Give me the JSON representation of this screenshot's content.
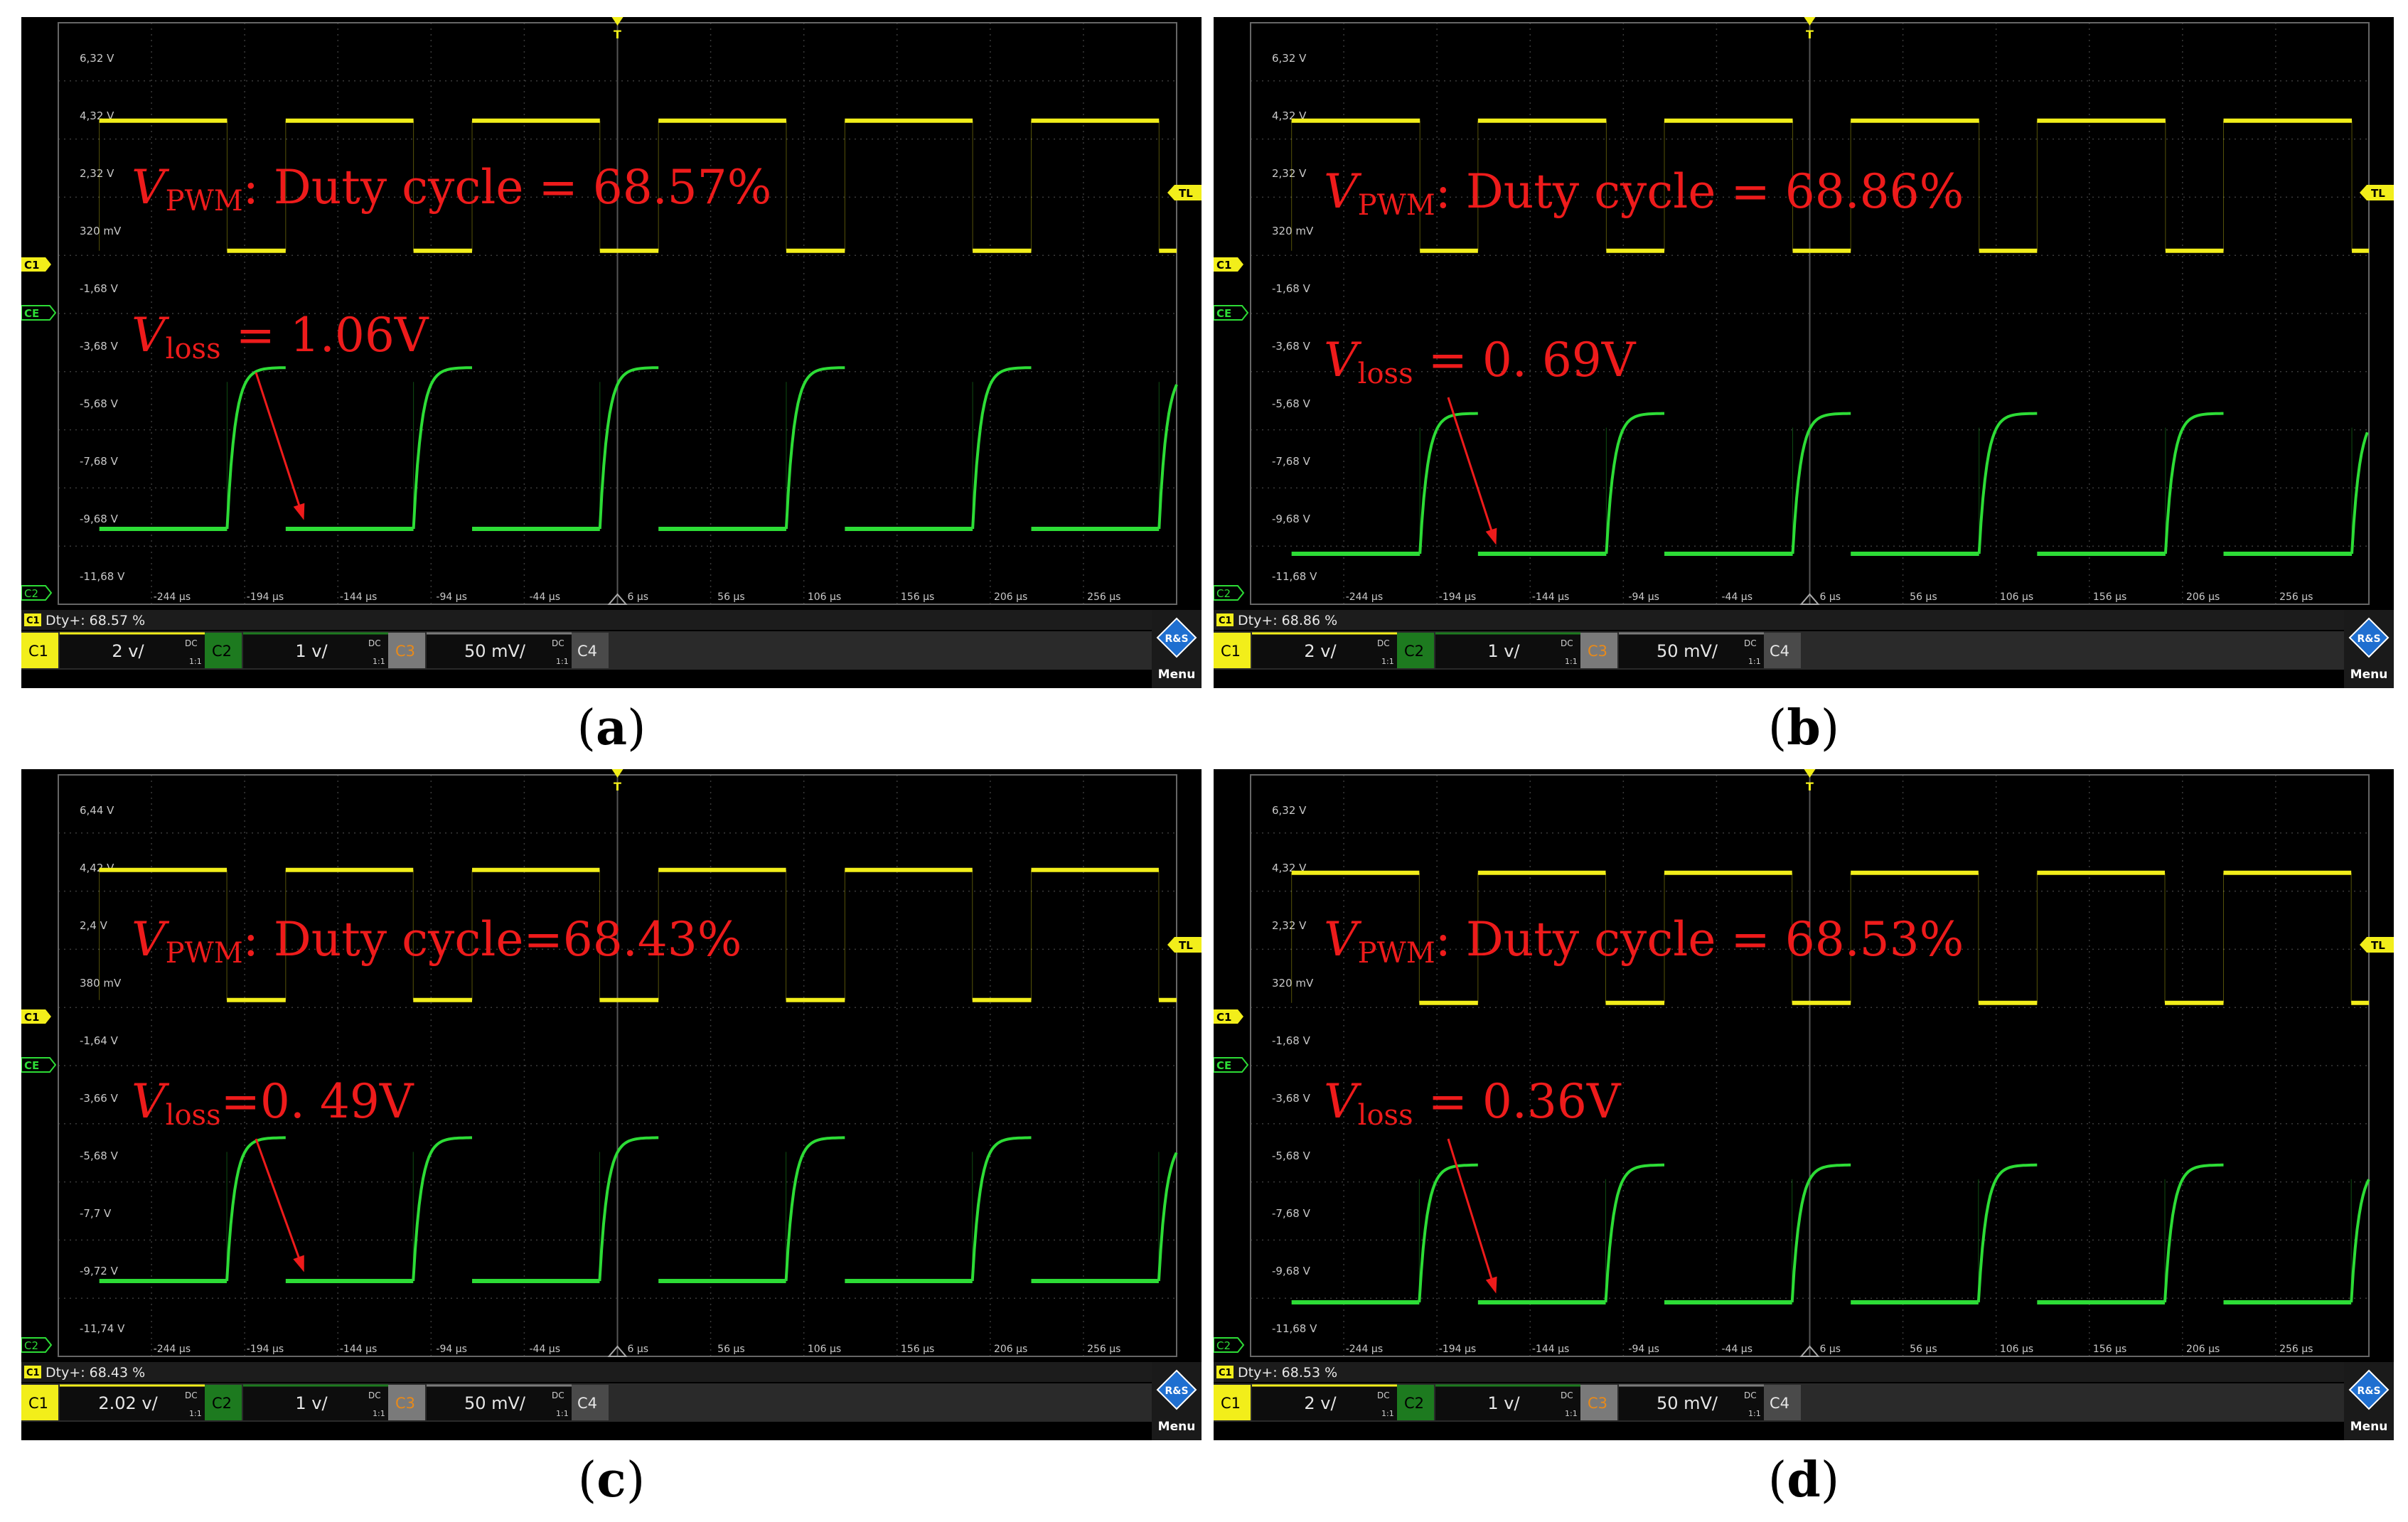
{
  "colors": {
    "ch1": "#f2ee1a",
    "ch2": "#2ddc36",
    "annotation": "#ee1b1b",
    "grid": "#3a3a3a",
    "background": "#000000"
  },
  "panels": [
    {
      "caption": "a",
      "duty_text": ": Duty cycle = 68.57%",
      "loss_text": " = 1.06V",
      "y_ticks": [
        "6,32 V",
        "4,32 V",
        "2,32 V",
        "320 mV",
        "-1,68 V",
        "-3,68 V",
        "-5,68 V",
        "-7,68 V",
        "-9,68 V",
        "-11,68 V"
      ],
      "measurement": "Dty+: 68.57 %",
      "ch1_scale": "2 v/",
      "ch2_scale": "1 v/",
      "ch3_scale": "50 mV/",
      "ch2_low_v": -9.6,
      "ch2_high_v": -4.2
    },
    {
      "caption": "b",
      "duty_text": ": Duty cycle = 68.86%",
      "loss_text": " = 0. 69V",
      "y_ticks": [
        "6,32 V",
        "4,32 V",
        "2,32 V",
        "320 mV",
        "-1,68 V",
        "-3,68 V",
        "-5,68 V",
        "-7,68 V",
        "-9,68 V",
        "-11,68 V"
      ],
      "measurement": "Dty+: 68.86 %",
      "ch1_scale": "2 v/",
      "ch2_scale": "1 v/",
      "ch3_scale": "50 mV/",
      "ch2_low_v": -10.1,
      "ch2_high_v": -5.4
    },
    {
      "caption": "c",
      "duty_text": ": Duty cycle=68.43%",
      "loss_text": "=0. 49V",
      "y_ticks": [
        "6,44 V",
        "4,42 V",
        "2,4 V",
        "380 mV",
        "-1,64 V",
        "-3,66 V",
        "-5,68 V",
        "-7,7 V",
        "-9,72 V",
        "-11,74 V"
      ],
      "measurement": "Dty+: 68.43 %",
      "ch1_scale": "2.02 v/",
      "ch2_scale": "1 v/",
      "ch3_scale": "50 mV/",
      "ch2_low_v": -11.2,
      "ch2_high_v": -6.4
    },
    {
      "caption": "d",
      "duty_text": ": Duty cycle = 68.53%",
      "loss_text": " = 0.36V",
      "y_ticks": [
        "6,32 V",
        "4,32 V",
        "2,32 V",
        "320 mV",
        "-1,68 V",
        "-3,68 V",
        "-5,68 V",
        "-7,68 V",
        "-9,68 V",
        "-11,68 V"
      ],
      "measurement": "Dty+: 68.53 %",
      "ch1_scale": "2 v/",
      "ch2_scale": "1 v/",
      "ch3_scale": "50 mV/",
      "ch2_low_v": -10.6,
      "ch2_high_v": -6.0
    }
  ],
  "x_ticks": [
    "-244 µs",
    "-194 µs",
    "-144 µs",
    "-94 µs",
    "-44 µs",
    "6 µs",
    "56 µs",
    "106 µs",
    "156 µs",
    "206 µs",
    "256 µs"
  ],
  "labels": {
    "v": "V",
    "pwm_sub": "PWM",
    "loss_sub": "loss",
    "ch1": "C1",
    "ch2": "C2",
    "ch3": "C3",
    "ch4": "C4",
    "dc": "DC",
    "ratio": "1:1",
    "trigger": "T",
    "tl": "TL",
    "ce": "CE",
    "menu": "Menu",
    "logo": "R&S"
  },
  "chart_data": [
    {
      "type": "line",
      "panel": "a",
      "x_ticks_us": [
        -244,
        -194,
        -144,
        -94,
        -44,
        6,
        56,
        106,
        156,
        206,
        256
      ],
      "series": [
        {
          "name": "VPWM",
          "form": "square",
          "period_us": 100,
          "duty_cycle_pct": 68.57,
          "high_v": 4.3,
          "low_v": 0.3
        },
        {
          "name": "Vloss",
          "form": "charging pulse",
          "period_us": 100,
          "low_v": -9.6,
          "high_v": -4.2,
          "vloss_v": 1.06
        }
      ]
    },
    {
      "type": "line",
      "panel": "b",
      "x_ticks_us": [
        -244,
        -194,
        -144,
        -94,
        -44,
        6,
        56,
        106,
        156,
        206,
        256
      ],
      "series": [
        {
          "name": "VPWM",
          "form": "square",
          "period_us": 100,
          "duty_cycle_pct": 68.86,
          "high_v": 4.3,
          "low_v": 0.3
        },
        {
          "name": "Vloss",
          "form": "charging pulse",
          "period_us": 100,
          "low_v": -10.1,
          "high_v": -5.4,
          "vloss_v": 0.69
        }
      ]
    },
    {
      "type": "line",
      "panel": "c",
      "x_ticks_us": [
        -244,
        -194,
        -144,
        -94,
        -44,
        6,
        56,
        106,
        156,
        206,
        256
      ],
      "series": [
        {
          "name": "VPWM",
          "form": "square",
          "period_us": 100,
          "duty_cycle_pct": 68.43,
          "high_v": 4.4,
          "low_v": 0.4
        },
        {
          "name": "Vloss",
          "form": "charging pulse",
          "period_us": 100,
          "low_v": -11.2,
          "high_v": -6.4,
          "vloss_v": 0.49
        }
      ]
    },
    {
      "type": "line",
      "panel": "d",
      "x_ticks_us": [
        -244,
        -194,
        -144,
        -94,
        -44,
        6,
        56,
        106,
        156,
        206,
        256
      ],
      "series": [
        {
          "name": "VPWM",
          "form": "square",
          "period_us": 100,
          "duty_cycle_pct": 68.53,
          "high_v": 4.3,
          "low_v": 0.3
        },
        {
          "name": "Vloss",
          "form": "charging pulse",
          "period_us": 100,
          "low_v": -10.6,
          "high_v": -6.0,
          "vloss_v": 0.36
        }
      ]
    }
  ]
}
